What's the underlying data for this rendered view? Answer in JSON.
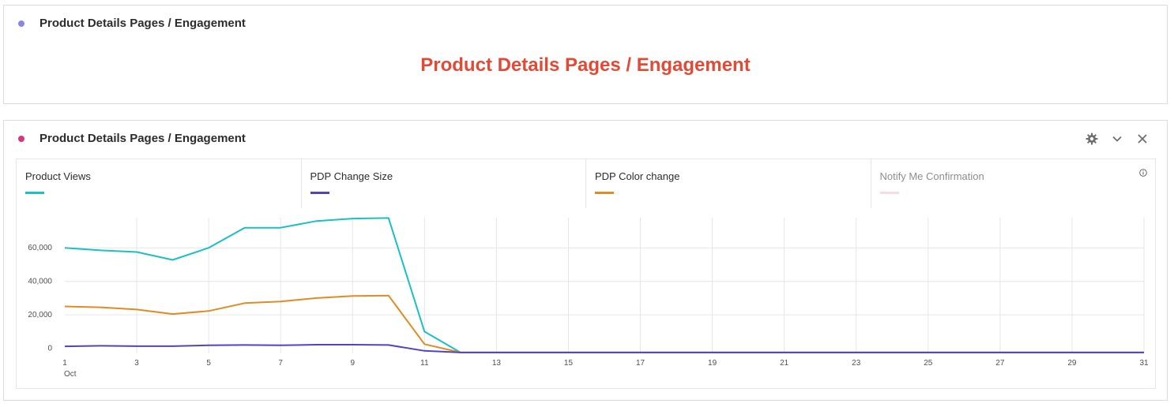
{
  "panels": [
    {
      "title": "Product Details Pages / Engagement",
      "dot_color": "#8a85ea",
      "heading": "Product Details Pages / Engagement",
      "heading_color": "#e34935"
    },
    {
      "title": "Product Details Pages / Engagement",
      "dot_color": "#d8367c",
      "actions": [
        "gear-icon",
        "chevron-down-icon",
        "close-icon"
      ]
    }
  ],
  "legend": [
    {
      "label": "Product Views",
      "color": "#1bbfc6"
    },
    {
      "label": "PDP Change Size",
      "color": "#5343c0"
    },
    {
      "label": "PDP Color change",
      "color": "#e08b24"
    },
    {
      "label": "Notify Me Confirmation",
      "color": "#fbd9e5"
    }
  ],
  "chart_data": {
    "type": "line",
    "x": [
      1,
      2,
      3,
      4,
      5,
      6,
      7,
      8,
      9,
      10,
      11,
      12,
      13,
      14,
      15,
      16,
      17,
      18,
      19,
      20,
      21,
      22,
      23,
      24,
      25,
      26,
      27,
      28,
      29,
      30,
      31
    ],
    "x_ticks": [
      1,
      3,
      5,
      7,
      9,
      11,
      13,
      15,
      17,
      19,
      21,
      23,
      25,
      27,
      29,
      31
    ],
    "x_ticks_text": [
      "1",
      "3",
      "5",
      "7",
      "9",
      "11",
      "13",
      "15",
      "17",
      "19",
      "21",
      "23",
      "25",
      "27",
      "29",
      "31"
    ],
    "x_sublabel": "Oct",
    "y_ticks": [
      0,
      20000,
      40000,
      60000
    ],
    "y_ticks_text": [
      "0",
      "20,000",
      "40,000",
      "60,000"
    ],
    "ylim": [
      -3000,
      78000
    ],
    "grid": true,
    "series": [
      {
        "name": "Product Views",
        "color": "#1bbfc6",
        "values": [
          60000,
          58500,
          57500,
          52800,
          60000,
          72000,
          72000,
          76000,
          77500,
          77800,
          10000,
          -2500,
          -2500,
          -2500,
          -2500,
          -2500,
          -2500,
          -2500,
          -2500,
          -2500,
          -2500,
          -2500,
          -2500,
          -2500,
          -2500,
          -2500,
          -2500,
          -2500,
          -2500,
          -2500,
          -2500
        ]
      },
      {
        "name": "PDP Color change",
        "color": "#e08b24",
        "values": [
          25000,
          24500,
          23200,
          20500,
          22300,
          27000,
          28000,
          30000,
          31300,
          31500,
          2500,
          -2500,
          -2500,
          -2500,
          -2500,
          -2500,
          -2500,
          -2500,
          -2500,
          -2500,
          -2500,
          -2500,
          -2500,
          -2500,
          -2500,
          -2500,
          -2500,
          -2500,
          -2500,
          -2500,
          -2500
        ]
      },
      {
        "name": "PDP Change Size",
        "color": "#5343c0",
        "values": [
          1200,
          1500,
          1300,
          1300,
          1800,
          2000,
          1800,
          2200,
          2200,
          2000,
          -1500,
          -2500,
          -2500,
          -2500,
          -2500,
          -2500,
          -2500,
          -2500,
          -2500,
          -2500,
          -2500,
          -2500,
          -2500,
          -2500,
          -2500,
          -2500,
          -2500,
          -2500,
          -2500,
          -2500,
          -2500
        ]
      }
    ]
  }
}
